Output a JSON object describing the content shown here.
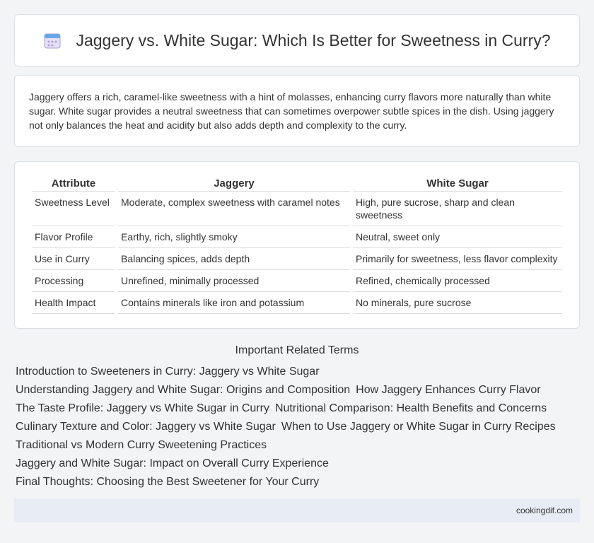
{
  "header": {
    "title": "Jaggery vs. White Sugar: Which Is Better for Sweetness in Curry?"
  },
  "intro": "Jaggery offers a rich, caramel-like sweetness with a hint of molasses, enhancing curry flavors more naturally than white sugar. White sugar provides a neutral sweetness that can sometimes overpower subtle spices in the dish. Using jaggery not only balances the heat and acidity but also adds depth and complexity to the curry.",
  "table": {
    "headers": [
      "Attribute",
      "Jaggery",
      "White Sugar"
    ],
    "rows": [
      [
        "Sweetness Level",
        "Moderate, complex sweetness with caramel notes",
        "High, pure sucrose, sharp and clean sweetness"
      ],
      [
        "Flavor Profile",
        "Earthy, rich, slightly smoky",
        "Neutral, sweet only"
      ],
      [
        "Use in Curry",
        "Balancing spices, adds depth",
        "Primarily for sweetness, less flavor complexity"
      ],
      [
        "Processing",
        "Unrefined, minimally processed",
        "Refined, chemically processed"
      ],
      [
        "Health Impact",
        "Contains minerals like iron and potassium",
        "No minerals, pure sucrose"
      ]
    ]
  },
  "related": {
    "title": "Important Related Terms",
    "tags": [
      "Introduction to Sweeteners in Curry: Jaggery vs White Sugar",
      "Understanding Jaggery and White Sugar: Origins and Composition",
      "How Jaggery Enhances Curry Flavor",
      "The Taste Profile: Jaggery vs White Sugar in Curry",
      "Nutritional Comparison: Health Benefits and Concerns",
      "Culinary Texture and Color: Jaggery vs White Sugar",
      "When to Use Jaggery or White Sugar in Curry Recipes",
      "Traditional vs Modern Curry Sweetening Practices",
      "Jaggery and White Sugar: Impact on Overall Curry Experience",
      "Final Thoughts: Choosing the Best Sweetener for Your Curry"
    ]
  },
  "footer": "cookingdif.com"
}
